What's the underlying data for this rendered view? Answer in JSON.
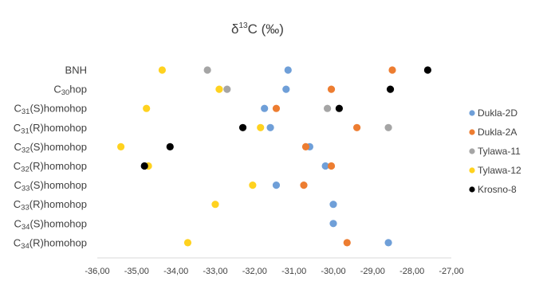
{
  "chart_data": {
    "type": "scatter",
    "title": "δ13C (‰)",
    "title_parts": {
      "delta": "δ",
      "superscript": "13",
      "rest": "C (‰)"
    },
    "xlim": [
      -36,
      -27
    ],
    "x_ticks": [
      -36,
      -35,
      -34,
      -33,
      -32,
      -31,
      -30,
      -29,
      -28,
      -27
    ],
    "x_tick_labels": [
      "-36,00",
      "-35,00",
      "-34,00",
      "-33,00",
      "-32,00",
      "-31,00",
      "-30,00",
      "-29,00",
      "-28,00",
      "-27,00"
    ],
    "categories": [
      {
        "label": "BNH",
        "prefix": "BNH",
        "num": "",
        "suffix": ""
      },
      {
        "label": "C30hop",
        "prefix": "C",
        "num": "30",
        "suffix": "hop"
      },
      {
        "label": "C31(S)homohop",
        "prefix": "C",
        "num": "31",
        "suffix": "(S)homohop"
      },
      {
        "label": "C31(R)homohop",
        "prefix": "C",
        "num": "31",
        "suffix": "(R)homohop"
      },
      {
        "label": "C32(S)homohop",
        "prefix": "C",
        "num": "32",
        "suffix": "(S)homohop"
      },
      {
        "label": "C32(R)homohop",
        "prefix": "C",
        "num": "32",
        "suffix": "(R)homohop"
      },
      {
        "label": "C33(S)homohop",
        "prefix": "C",
        "num": "33",
        "suffix": "(S)homohop"
      },
      {
        "label": "C33(R)homohop",
        "prefix": "C",
        "num": "33",
        "suffix": "(R)homohop"
      },
      {
        "label": "C34(S)homohop",
        "prefix": "C",
        "num": "34",
        "suffix": "(S)homohop"
      },
      {
        "label": "C34(R)homohop",
        "prefix": "C",
        "num": "34",
        "suffix": "(R)homohop"
      }
    ],
    "series": [
      {
        "name": "Dukla-2D",
        "color": "#6f9fd8",
        "values": [
          -31.15,
          -31.2,
          -31.75,
          -31.6,
          -30.6,
          -30.2,
          -31.45,
          -30.0,
          -30.0,
          -28.6
        ]
      },
      {
        "name": "Dukla-2A",
        "color": "#ed7d31",
        "values": [
          -28.5,
          -30.05,
          -31.45,
          -29.4,
          -30.7,
          -30.05,
          -30.75,
          null,
          null,
          -29.65
        ]
      },
      {
        "name": "Tylawa-11",
        "color": "#a5a5a5",
        "values": [
          -33.2,
          -32.7,
          -30.15,
          -28.6,
          null,
          null,
          null,
          null,
          null,
          null
        ]
      },
      {
        "name": "Tylawa-12",
        "color": "#ffd21f",
        "values": [
          -34.35,
          -32.9,
          -34.75,
          -31.85,
          -35.4,
          -34.7,
          -32.05,
          -33.0,
          null,
          -33.7
        ]
      },
      {
        "name": "Krosno-8",
        "color": "#000000",
        "values": [
          -27.6,
          -28.55,
          -29.85,
          -32.3,
          -34.15,
          -34.8,
          null,
          null,
          null,
          null
        ]
      }
    ],
    "legend_position": "right",
    "grid": false
  }
}
